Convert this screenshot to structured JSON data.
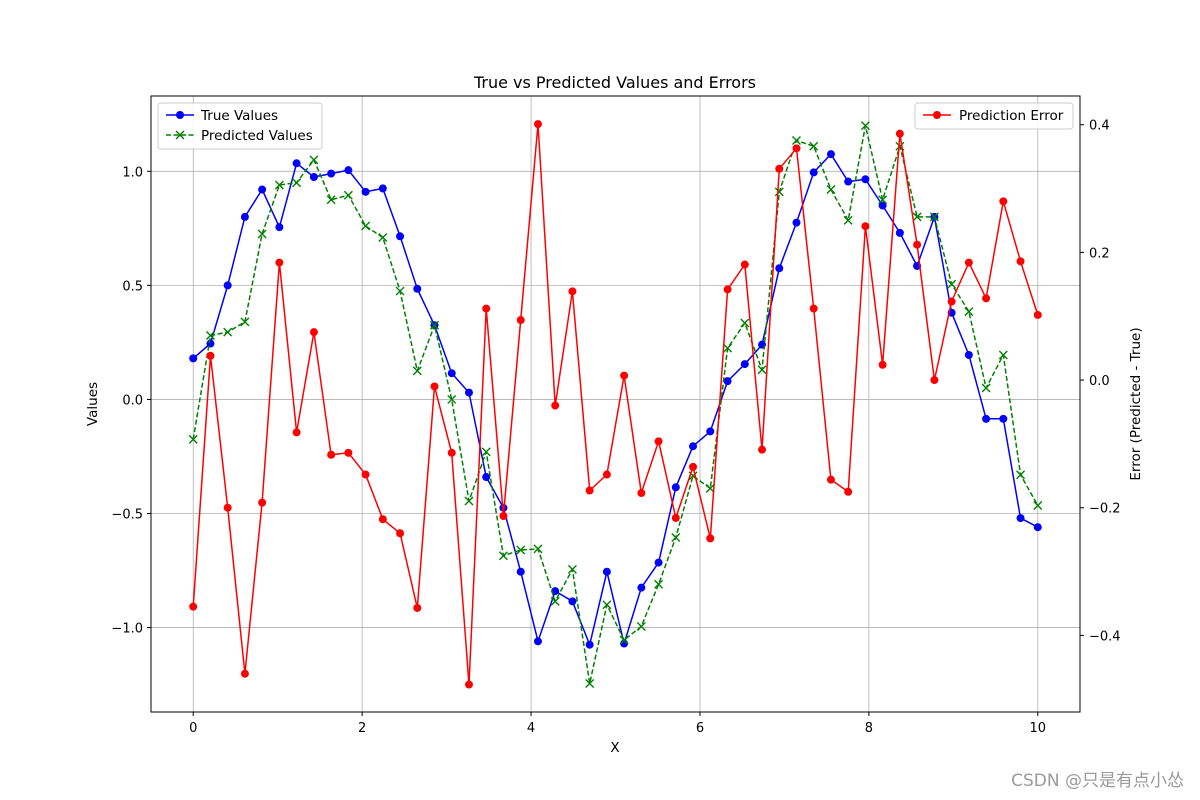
{
  "chart_data": {
    "type": "line",
    "title": "True vs Predicted Values and Errors",
    "xlabel": "X",
    "ylabel": "Values",
    "y2label": "Error (Predicted - True)",
    "xlim": [
      -0.5,
      10.5
    ],
    "ylim": [
      -1.37,
      1.33
    ],
    "y2lim": [
      -0.52,
      0.445
    ],
    "xticks": [
      0,
      2,
      4,
      6,
      8,
      10
    ],
    "xtick_labels": [
      "0",
      "2",
      "4",
      "6",
      "8",
      "10"
    ],
    "yticks": [
      -1.0,
      -0.5,
      0.0,
      0.5,
      1.0
    ],
    "ytick_labels": [
      "−1.0",
      "−0.5",
      "0.0",
      "0.5",
      "1.0"
    ],
    "y2ticks": [
      -0.4,
      -0.2,
      0.0,
      0.2,
      0.4
    ],
    "y2tick_labels": [
      "−0.4",
      "−0.2",
      "0.0",
      "0.2",
      "0.4"
    ],
    "grid": true,
    "x": [
      0.0,
      0.204,
      0.408,
      0.612,
      0.816,
      1.02,
      1.224,
      1.429,
      1.633,
      1.837,
      2.041,
      2.245,
      2.449,
      2.653,
      2.857,
      3.061,
      3.265,
      3.469,
      3.673,
      3.878,
      4.082,
      4.286,
      4.49,
      4.694,
      4.898,
      5.102,
      5.306,
      5.51,
      5.714,
      5.918,
      6.122,
      6.327,
      6.531,
      6.735,
      6.939,
      7.143,
      7.347,
      7.551,
      7.755,
      7.959,
      8.163,
      8.367,
      8.571,
      8.776,
      8.98,
      9.184,
      9.388,
      9.592,
      9.796,
      10.0
    ],
    "series": [
      {
        "name": "True Values",
        "axis": "left",
        "color": "#0000ff",
        "linestyle": "solid",
        "marker": "circle",
        "values": [
          0.18,
          0.245,
          0.5,
          0.8,
          0.92,
          0.755,
          1.035,
          0.975,
          0.99,
          1.005,
          0.91,
          0.925,
          0.715,
          0.485,
          0.325,
          0.115,
          0.03,
          -0.34,
          -0.475,
          -0.755,
          -1.06,
          -0.84,
          -0.885,
          -1.075,
          -0.755,
          -1.07,
          -0.825,
          -0.715,
          -0.385,
          -0.205,
          -0.14,
          0.08,
          0.155,
          0.24,
          0.575,
          0.775,
          0.995,
          1.075,
          0.955,
          0.965,
          0.85,
          0.73,
          0.585,
          0.8,
          0.38,
          0.195,
          -0.085,
          -0.085,
          -0.52,
          -0.56
        ]
      },
      {
        "name": "Predicted Values",
        "axis": "left",
        "color": "#008000",
        "linestyle": "dashed",
        "marker": "x",
        "values": [
          -0.175,
          0.28,
          0.295,
          0.34,
          0.725,
          0.94,
          0.95,
          1.05,
          0.875,
          0.895,
          0.76,
          0.71,
          0.475,
          0.125,
          0.325,
          0.0,
          -0.445,
          -0.23,
          -0.685,
          -0.66,
          -0.655,
          -0.885,
          -0.745,
          -1.245,
          -0.9,
          -1.055,
          -0.995,
          -0.81,
          -0.605,
          -0.335,
          -0.39,
          0.225,
          0.335,
          0.13,
          0.91,
          1.135,
          1.11,
          0.92,
          0.785,
          1.2,
          0.875,
          1.11,
          0.8,
          0.8,
          0.505,
          0.385,
          0.05,
          0.195,
          -0.33,
          -0.465
        ]
      },
      {
        "name": "Prediction Error",
        "axis": "right",
        "color": "#ff0000",
        "linestyle": "solid",
        "marker": "circle",
        "values": [
          -0.355,
          0.038,
          -0.2,
          -0.46,
          -0.192,
          0.184,
          -0.082,
          0.075,
          -0.117,
          -0.114,
          -0.148,
          -0.218,
          -0.24,
          -0.357,
          -0.01,
          -0.114,
          -0.477,
          0.112,
          -0.213,
          0.094,
          0.401,
          -0.04,
          0.139,
          -0.173,
          -0.148,
          0.007,
          -0.177,
          -0.096,
          -0.216,
          -0.136,
          -0.248,
          0.142,
          0.181,
          -0.109,
          0.331,
          0.363,
          0.112,
          -0.156,
          -0.175,
          0.241,
          0.024,
          0.386,
          0.212,
          0.0,
          0.123,
          0.184,
          0.128,
          0.28,
          0.186,
          0.102
        ]
      }
    ],
    "legend_left": {
      "position": "upper-left",
      "entries": [
        "True Values",
        "Predicted Values"
      ]
    },
    "legend_right": {
      "position": "upper-right",
      "entries": [
        "Prediction Error"
      ]
    }
  },
  "watermark": "CSDN @只是有点小怂",
  "colors": {
    "true": "#0000ff",
    "predicted": "#008000",
    "error": "#ff0000",
    "grid": "#b0b0b0",
    "axis": "#000000"
  }
}
